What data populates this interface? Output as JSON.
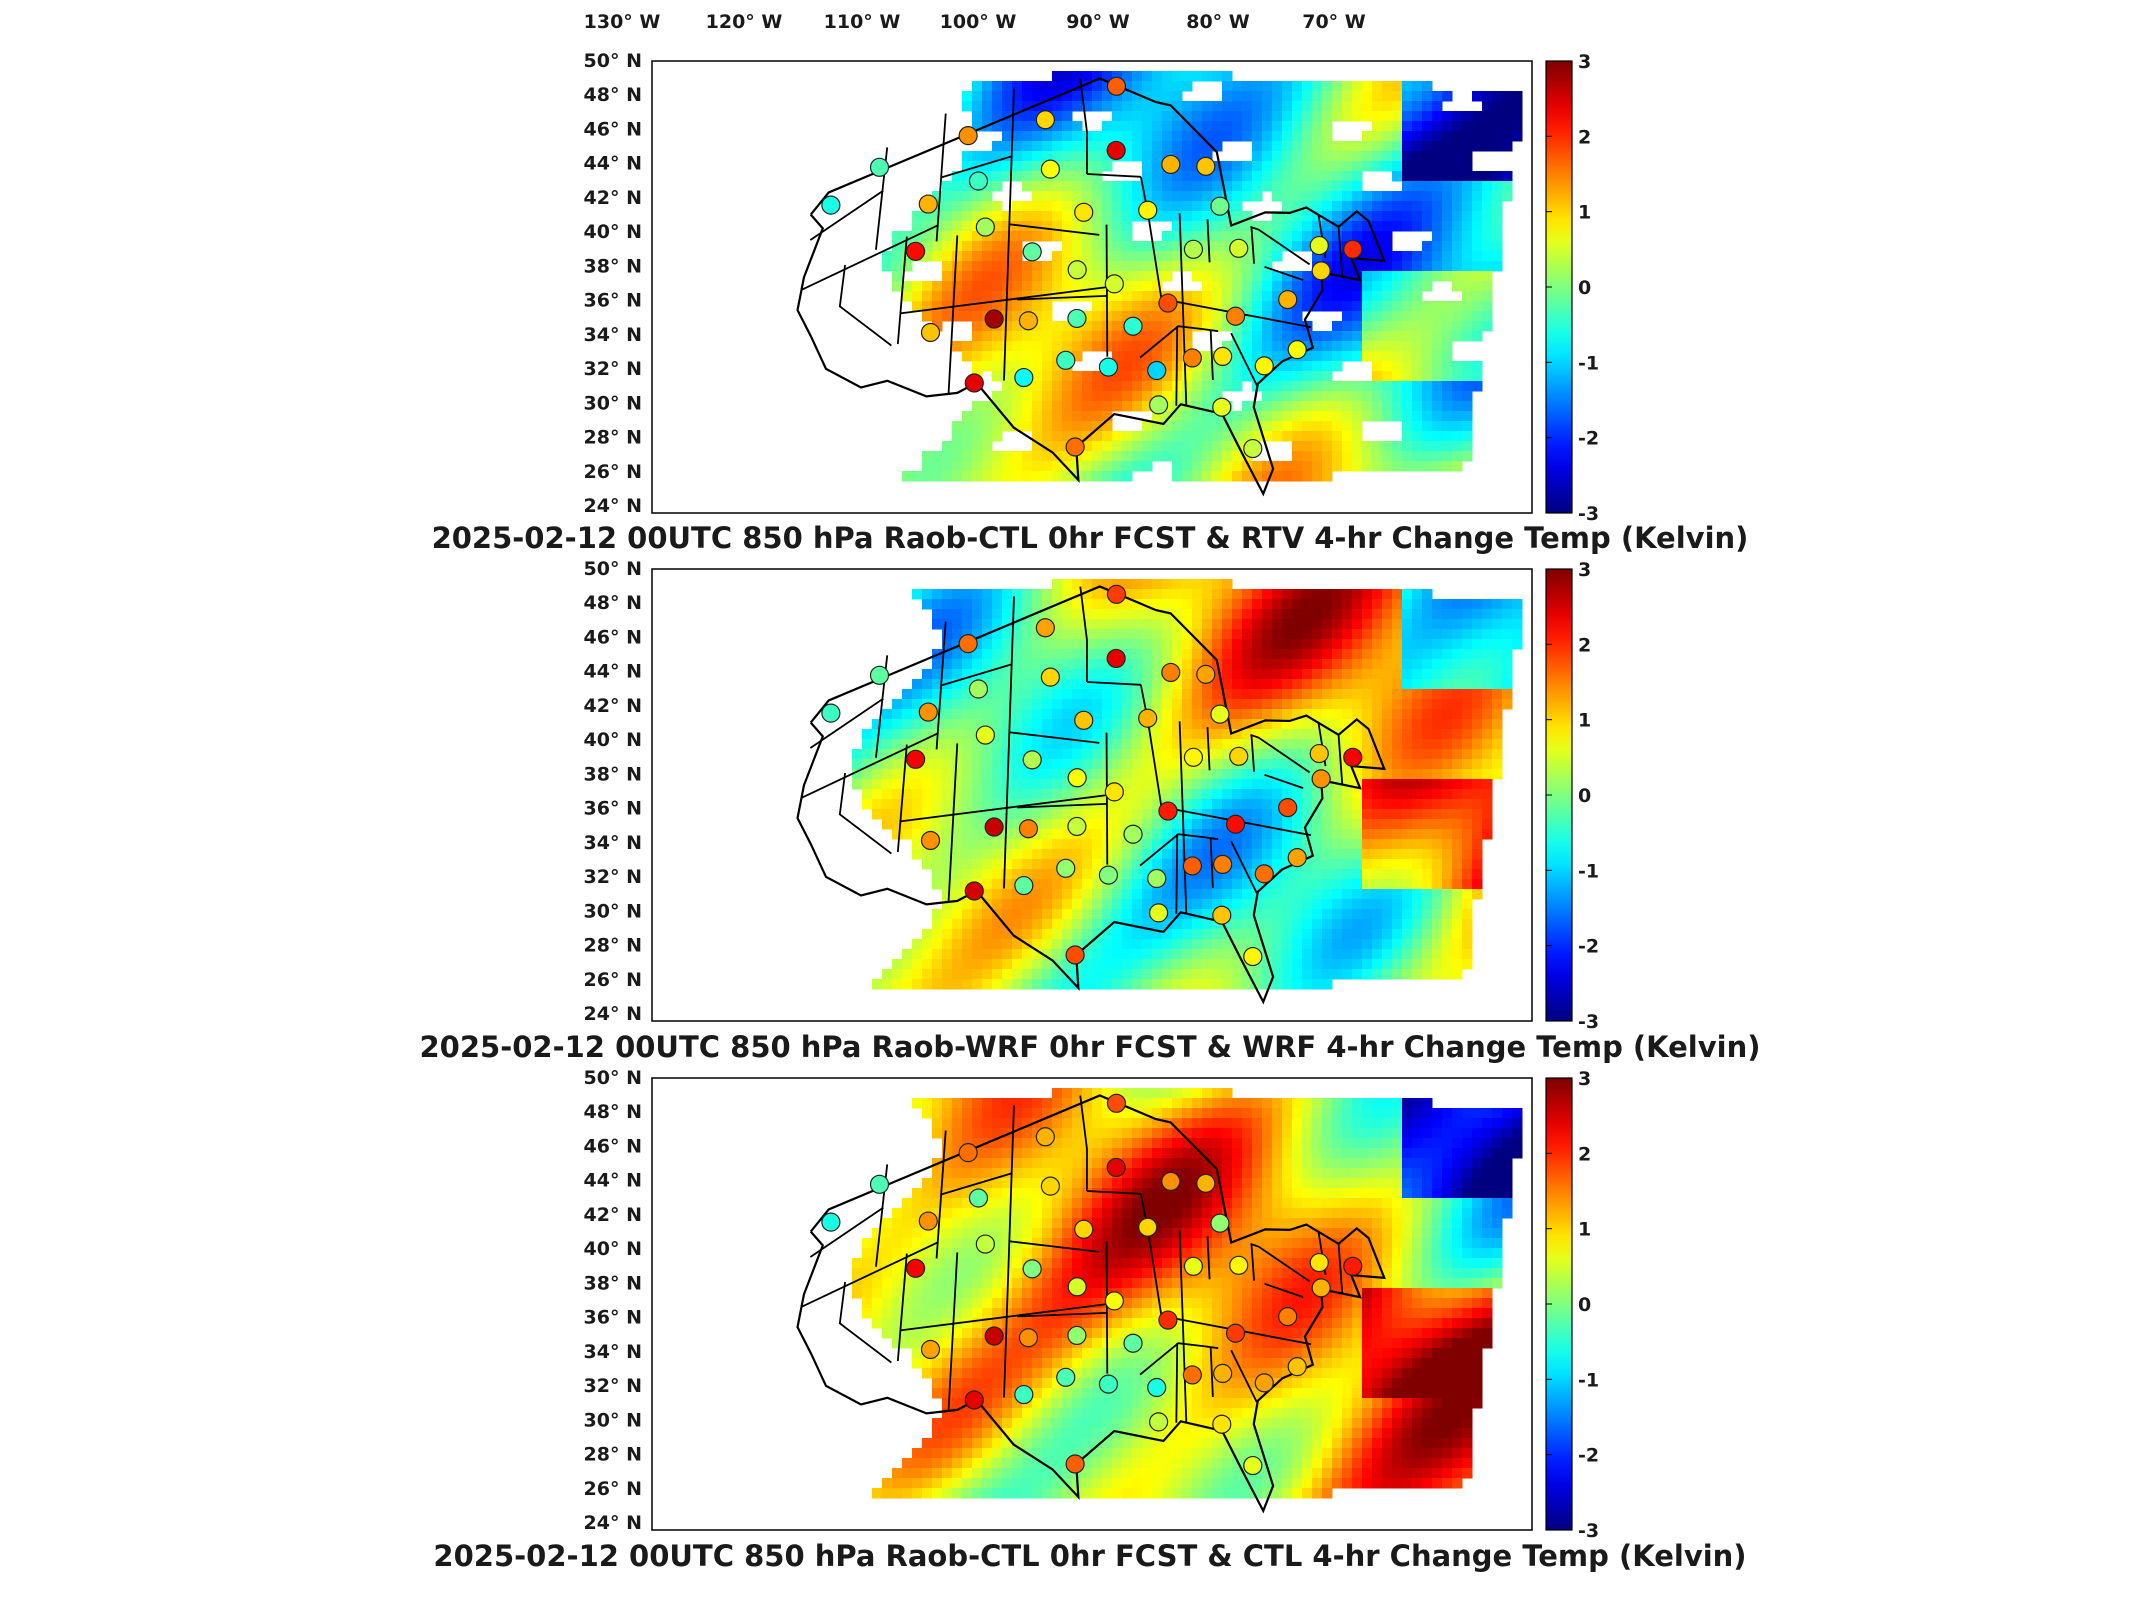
{
  "lon_labels": [
    "130° W",
    "120° W",
    "110° W",
    "100° W",
    "90° W",
    "80° W",
    "70° W"
  ],
  "lat_labels": [
    "50° N",
    "48° N",
    "46° N",
    "44° N",
    "42° N",
    "40° N",
    "38° N",
    "36° N",
    "34° N",
    "32° N",
    "30° N",
    "28° N",
    "26° N",
    "24° N"
  ],
  "colorbar": {
    "ticks": [
      "3",
      "2",
      "1",
      "0",
      "-1",
      "-2",
      "-3"
    ],
    "range": [
      -3,
      3
    ],
    "colormap": "jet",
    "colors": [
      "#00008f",
      "#0000ff",
      "#00ffff",
      "#ffff00",
      "#ff0000",
      "#800000"
    ]
  },
  "panels": [
    {
      "title": "2025-02-12 00UTC 850 hPa Raob-CTL 0hr FCST & RTV 4-hr Change Temp (Kelvin)"
    },
    {
      "title": "2025-02-12 00UTC 850 hPa Raob-WRF 0hr FCST & WRF 4-hr Change Temp (Kelvin)"
    },
    {
      "title": "2025-02-12 00UTC 850 hPa Raob-CTL 0hr FCST & CTL 4-hr Change Temp (Kelvin)"
    }
  ],
  "map_data": {
    "projection": "Lambert conformal, CONUS",
    "lon_range": [
      -130,
      -65
    ],
    "lat_range": [
      24,
      50
    ],
    "field": "850 hPa temperature 4-hr change (Kelvin)",
    "stations": [
      {
        "lon": -122.5,
        "lat": 47.7,
        "v": [
          -0.6,
          -0.4,
          -0.6
        ]
      },
      {
        "lon": -117.6,
        "lat": 47.9,
        "v": [
          -0.3,
          -0.2,
          -0.3
        ]
      },
      {
        "lon": -108.5,
        "lat": 47.0,
        "v": [
          1.4,
          1.6,
          1.6
        ]
      },
      {
        "lon": -100.7,
        "lat": 46.8,
        "v": [
          1.0,
          1.3,
          1.2
        ]
      },
      {
        "lon": -93.5,
        "lat": 48.6,
        "v": [
          1.7,
          1.9,
          1.8
        ]
      },
      {
        "lon": -93.6,
        "lat": 44.9,
        "v": [
          2.4,
          2.4,
          2.4
        ]
      },
      {
        "lon": -88.2,
        "lat": 44.5,
        "v": [
          1.2,
          1.5,
          1.4
        ]
      },
      {
        "lon": -84.7,
        "lat": 44.9,
        "v": [
          1.1,
          1.3,
          1.2
        ]
      },
      {
        "lon": -83.5,
        "lat": 42.7,
        "v": [
          -0.1,
          0.6,
          0.1
        ]
      },
      {
        "lon": -112.1,
        "lat": 43.6,
        "v": [
          1.2,
          1.4,
          1.4
        ]
      },
      {
        "lon": -107.2,
        "lat": 44.0,
        "v": [
          -0.4,
          0.2,
          -0.2
        ]
      },
      {
        "lon": -100.1,
        "lat": 43.9,
        "v": [
          0.7,
          1.0,
          1.0
        ]
      },
      {
        "lon": -96.8,
        "lat": 41.3,
        "v": [
          0.9,
          1.1,
          1.0
        ]
      },
      {
        "lon": -90.6,
        "lat": 41.6,
        "v": [
          0.8,
          1.2,
          1.0
        ]
      },
      {
        "lon": -86.3,
        "lat": 39.7,
        "v": [
          0.3,
          0.8,
          0.6
        ]
      },
      {
        "lon": -81.9,
        "lat": 40.4,
        "v": [
          0.5,
          1.0,
          0.8
        ]
      },
      {
        "lon": -106.3,
        "lat": 41.1,
        "v": [
          0.2,
          0.6,
          0.4
        ]
      },
      {
        "lon": -113.0,
        "lat": 40.8,
        "v": [
          2.2,
          2.3,
          2.3
        ]
      },
      {
        "lon": -101.7,
        "lat": 39.2,
        "v": [
          -0.2,
          0.3,
          0.0
        ]
      },
      {
        "lon": -97.4,
        "lat": 38.0,
        "v": [
          0.4,
          0.7,
          0.5
        ]
      },
      {
        "lon": -93.9,
        "lat": 37.2,
        "v": [
          0.5,
          0.9,
          0.7
        ]
      },
      {
        "lon": -88.9,
        "lat": 36.3,
        "v": [
          1.8,
          2.1,
          2.0
        ]
      },
      {
        "lon": -82.6,
        "lat": 36.1,
        "v": [
          1.5,
          2.2,
          1.9
        ]
      },
      {
        "lon": -77.5,
        "lat": 38.0,
        "v": [
          1.2,
          1.8,
          1.5
        ]
      },
      {
        "lon": -111.0,
        "lat": 35.3,
        "v": [
          1.1,
          1.4,
          1.3
        ]
      },
      {
        "lon": -105.1,
        "lat": 35.5,
        "v": [
          2.8,
          2.6,
          2.6
        ]
      },
      {
        "lon": -101.9,
        "lat": 35.2,
        "v": [
          1.2,
          1.5,
          1.4
        ]
      },
      {
        "lon": -97.4,
        "lat": 35.2,
        "v": [
          -0.3,
          0.4,
          0.1
        ]
      },
      {
        "lon": -92.2,
        "lat": 34.8,
        "v": [
          -0.5,
          0.2,
          -0.2
        ]
      },
      {
        "lon": -86.8,
        "lat": 33.2,
        "v": [
          1.5,
          1.7,
          1.6
        ]
      },
      {
        "lon": -84.0,
        "lat": 33.5,
        "v": [
          0.9,
          1.5,
          1.2
        ]
      },
      {
        "lon": -80.2,
        "lat": 33.3,
        "v": [
          0.8,
          1.6,
          1.3
        ]
      },
      {
        "lon": -77.0,
        "lat": 34.8,
        "v": [
          0.7,
          1.3,
          1.1
        ]
      },
      {
        "lon": -106.7,
        "lat": 31.8,
        "v": [
          2.4,
          2.5,
          2.4
        ]
      },
      {
        "lon": -102.2,
        "lat": 31.9,
        "v": [
          -0.7,
          -0.2,
          -0.4
        ]
      },
      {
        "lon": -98.4,
        "lat": 32.8,
        "v": [
          -0.4,
          0.1,
          -0.3
        ]
      },
      {
        "lon": -94.5,
        "lat": 32.4,
        "v": [
          -0.6,
          0.0,
          -0.4
        ]
      },
      {
        "lon": -90.1,
        "lat": 32.3,
        "v": [
          -1.0,
          0.2,
          -0.6
        ]
      },
      {
        "lon": -90.0,
        "lat": 30.3,
        "v": [
          0.2,
          0.6,
          0.4
        ]
      },
      {
        "lon": -84.3,
        "lat": 30.4,
        "v": [
          0.6,
          1.1,
          0.9
        ]
      },
      {
        "lon": -81.7,
        "lat": 28.0,
        "v": [
          0.4,
          0.8,
          0.6
        ]
      },
      {
        "lon": -97.5,
        "lat": 27.8,
        "v": [
          1.6,
          1.8,
          1.7
        ]
      },
      {
        "lon": -70.3,
        "lat": 43.9,
        "v": [
          2.0,
          2.3,
          2.1
        ]
      },
      {
        "lon": -73.8,
        "lat": 42.7,
        "v": [
          0.6,
          1.1,
          0.9
        ]
      },
      {
        "lon": -73.9,
        "lat": 40.9,
        "v": [
          1.0,
          1.4,
          1.2
        ]
      }
    ]
  }
}
